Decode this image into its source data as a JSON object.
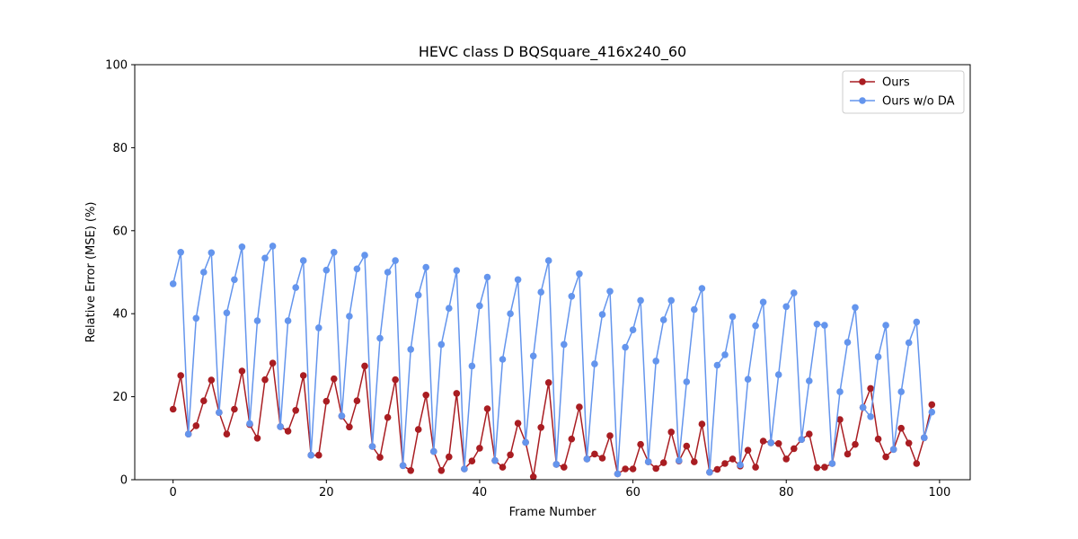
{
  "chart_data": {
    "type": "line",
    "title": "HEVC class D BQSquare_416x240_60",
    "xlabel": "Frame Number",
    "ylabel": "Relative Error (MSE) (%)",
    "xlim": [
      -5,
      104
    ],
    "ylim": [
      0,
      100
    ],
    "xticks": [
      0,
      20,
      40,
      60,
      80,
      100
    ],
    "yticks": [
      0,
      20,
      40,
      60,
      80,
      100
    ],
    "legend_position": "top-right",
    "grid": false,
    "series": [
      {
        "name": "Ours",
        "color": "#a91d22",
        "values": [
          17.0,
          25.1,
          11.0,
          13.0,
          19.0,
          24.0,
          16.2,
          11.0,
          17.0,
          26.2,
          13.3,
          10.0,
          24.1,
          28.1,
          12.8,
          11.7,
          16.7,
          25.1,
          5.9,
          5.9,
          18.9,
          24.3,
          15.3,
          12.7,
          19.0,
          27.4,
          8.0,
          5.4,
          15.0,
          24.1,
          3.4,
          2.2,
          12.1,
          20.4,
          6.8,
          2.2,
          5.5,
          20.8,
          2.6,
          4.5,
          7.6,
          17.1,
          4.6,
          3.0,
          6.0,
          13.6,
          9.0,
          0.7,
          12.6,
          23.4,
          3.7,
          3.0,
          9.8,
          17.5,
          5.0,
          6.2,
          5.2,
          10.6,
          1.4,
          2.6,
          2.6,
          8.5,
          4.3,
          2.7,
          4.1,
          11.5,
          4.5,
          8.1,
          4.3,
          13.4,
          1.8,
          2.5,
          3.9,
          5.0,
          3.3,
          7.1,
          3.0,
          9.3,
          8.9,
          8.7,
          5.0,
          7.5,
          9.7,
          11.0,
          2.9,
          3.0,
          3.9,
          14.5,
          6.2,
          8.5,
          17.4,
          22.0,
          9.8,
          5.5,
          7.3,
          12.4,
          8.8,
          3.9,
          10.1,
          18.1
        ]
      },
      {
        "name": "Ours w/o DA",
        "color": "#6495ed",
        "values": [
          47.2,
          54.8,
          11.0,
          38.9,
          50.0,
          54.7,
          16.2,
          40.2,
          48.2,
          56.1,
          13.5,
          38.3,
          53.4,
          56.3,
          12.8,
          38.3,
          46.3,
          52.8,
          5.9,
          36.6,
          50.5,
          54.8,
          15.4,
          39.4,
          50.8,
          54.1,
          8.0,
          34.1,
          50.0,
          52.8,
          3.4,
          31.4,
          44.5,
          51.2,
          6.8,
          32.6,
          41.3,
          50.4,
          2.6,
          27.4,
          41.9,
          48.8,
          4.6,
          29.0,
          40.0,
          48.2,
          9.0,
          29.8,
          45.2,
          52.8,
          3.7,
          32.6,
          44.2,
          49.6,
          5.0,
          27.9,
          39.8,
          45.4,
          1.4,
          31.9,
          36.1,
          43.2,
          4.3,
          28.6,
          38.5,
          43.2,
          4.6,
          23.6,
          41.0,
          46.1,
          1.8,
          27.6,
          30.1,
          39.3,
          3.6,
          24.2,
          37.1,
          42.8,
          8.9,
          25.3,
          41.7,
          45.0,
          9.7,
          23.8,
          37.5,
          37.2,
          3.9,
          21.2,
          33.1,
          41.5,
          17.4,
          15.2,
          29.6,
          37.2,
          7.3,
          21.2,
          33.0,
          38.0,
          10.1,
          16.3
        ]
      }
    ]
  }
}
